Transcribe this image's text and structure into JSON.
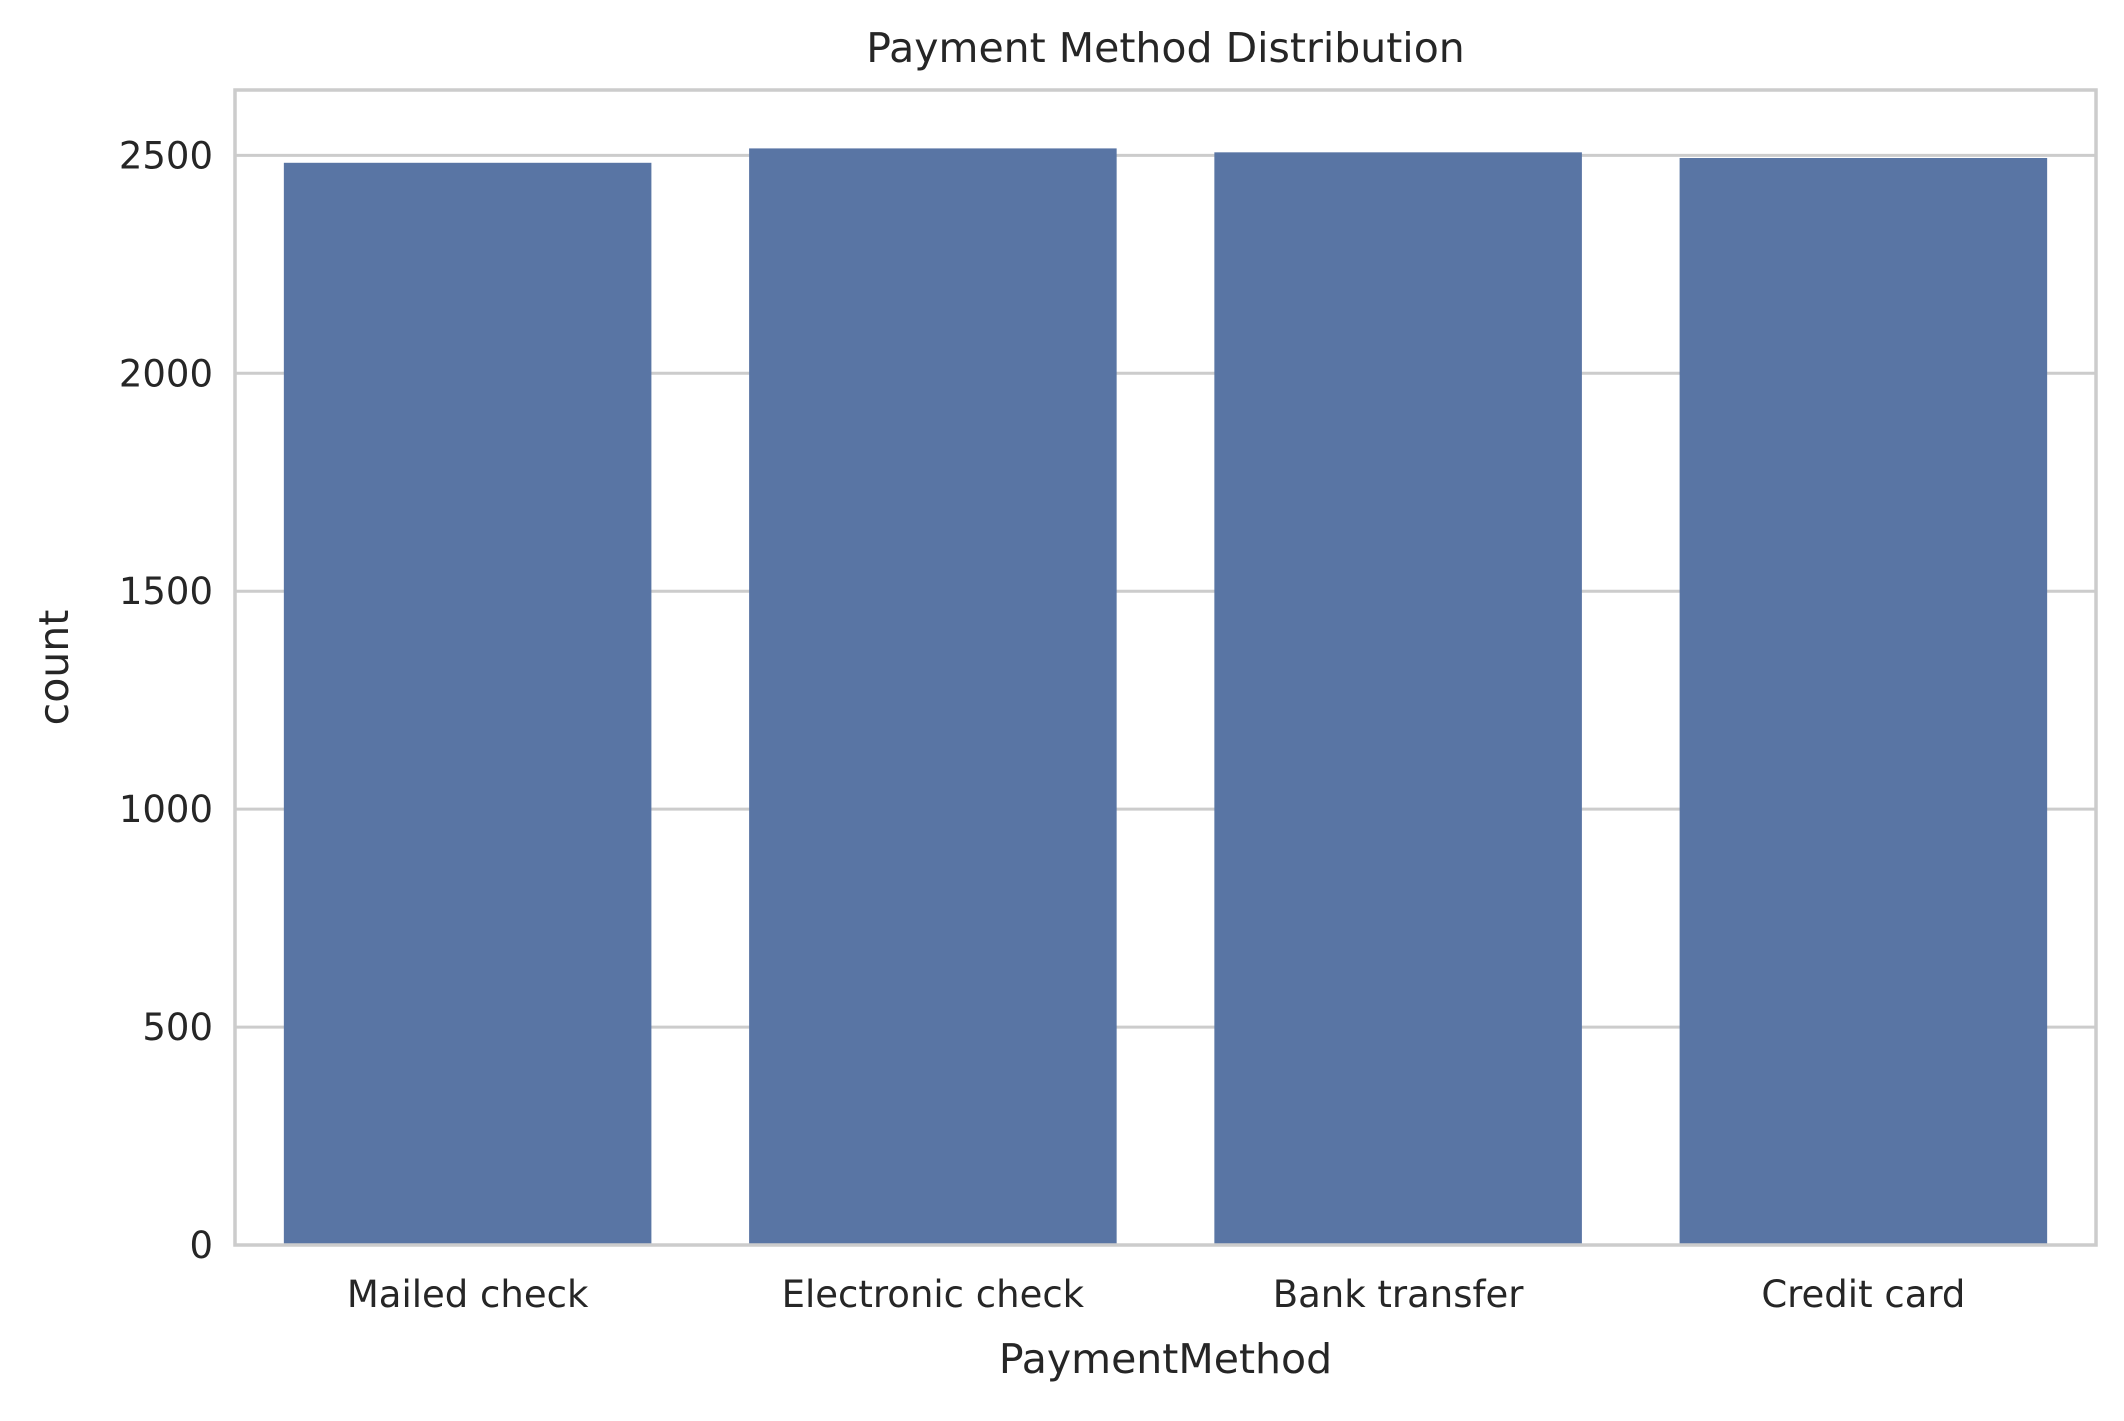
{
  "chart_data": {
    "type": "bar",
    "title": "Payment Method Distribution",
    "xlabel": "PaymentMethod",
    "ylabel": "count",
    "categories": [
      "Mailed check",
      "Electronic check",
      "Bank transfer",
      "Credit card"
    ],
    "values": [
      2483,
      2516,
      2507,
      2494
    ],
    "ylim": [
      0,
      2650
    ],
    "yticks": [
      0,
      500,
      1000,
      1500,
      2000,
      2500
    ],
    "grid": true,
    "bar_color": "#5975a4",
    "legend": "none"
  }
}
